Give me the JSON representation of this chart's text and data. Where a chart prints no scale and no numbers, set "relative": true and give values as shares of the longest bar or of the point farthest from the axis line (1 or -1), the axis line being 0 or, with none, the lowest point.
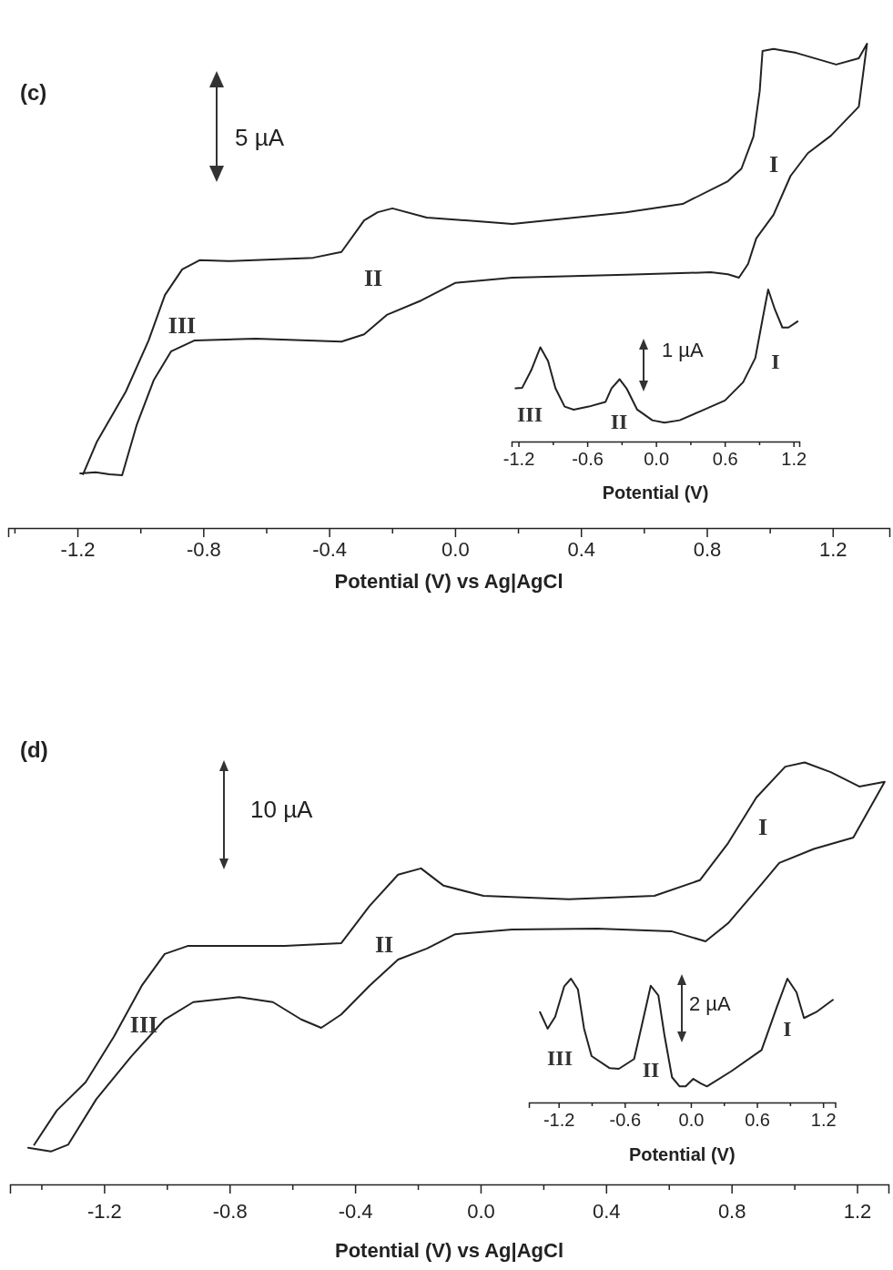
{
  "chart_data": [
    {
      "type": "line",
      "title": "(c)",
      "xlabel": "Potential (V) vs Ag|AgCl",
      "relative": true,
      "tick_labels": "x",
      "xlim": [
        -1.42,
        1.38
      ],
      "xticks": [
        {
          "value": -1.4,
          "label": null
        },
        -1.2,
        {
          "value": -1.0,
          "label": null
        },
        -0.8,
        {
          "value": -0.6,
          "label": null
        },
        -0.4,
        {
          "value": -0.2,
          "label": null
        },
        {
          "value": 0,
          "label": "0.0"
        },
        {
          "value": 0.2,
          "label": null
        },
        0.4,
        {
          "value": 0.6,
          "label": null
        },
        0.8,
        {
          "value": 1.0,
          "label": null
        },
        1.2
      ],
      "series": [
        {
          "color": "#222222",
          "x": [
            -1.191,
            -1.142,
            -1.098,
            -1.058,
            -1.012,
            -0.957,
            -0.902,
            -0.829,
            -0.633,
            -0.361,
            -0.289,
            -0.217,
            -0.107,
            0.0,
            0.182,
            0.543,
            0.812,
            0.867,
            0.902,
            0.931,
            0.957,
            1.012,
            1.066,
            1.121,
            1.194,
            1.283,
            1.309,
            1.283,
            1.211,
            1.084,
            1.012,
            0.977,
            0.968,
            0.948,
            0.91,
            0.867,
            0.723,
            0.543,
            0.182,
            -0.09,
            -0.199,
            -0.246,
            -0.289,
            -0.361,
            -0.451,
            -0.723,
            -0.812,
            -0.867,
            -0.922,
            -0.974,
            -1.046,
            -1.139,
            -1.182
          ],
          "values": [
            0.113,
            0.115,
            0.111,
            0.109,
            0.212,
            0.306,
            0.365,
            0.387,
            0.391,
            0.385,
            0.4,
            0.44,
            0.47,
            0.506,
            0.517,
            0.523,
            0.528,
            0.524,
            0.517,
            0.545,
            0.598,
            0.647,
            0.727,
            0.774,
            0.81,
            0.87,
            1.0,
            0.97,
            0.957,
            0.981,
            0.989,
            0.985,
            0.902,
            0.808,
            0.742,
            0.716,
            0.669,
            0.652,
            0.628,
            0.641,
            0.66,
            0.652,
            0.635,
            0.57,
            0.558,
            0.551,
            0.553,
            0.534,
            0.481,
            0.387,
            0.282,
            0.177,
            0.111
          ]
        }
      ],
      "annotations": [
        "5 µA",
        "I",
        "II",
        "III"
      ]
    },
    {
      "type": "line",
      "xlabel": "Potential (V)",
      "relative": true,
      "tick_labels": "x",
      "xlim": [
        -1.26,
        1.25
      ],
      "xticks": [
        -1.2,
        {
          "value": -0.9,
          "label": null
        },
        -0.6,
        {
          "value": -0.3,
          "label": null
        },
        {
          "value": 0,
          "label": "0.0"
        },
        {
          "value": 0.3,
          "label": null
        },
        0.6,
        {
          "value": 0.9,
          "label": null
        },
        1.2
      ],
      "series": [
        {
          "color": "#222222",
          "x": [
            -1.225,
            -1.167,
            -1.088,
            -1.009,
            -0.942,
            -0.877,
            -0.797,
            -0.718,
            -0.586,
            -0.441,
            -0.388,
            -0.317,
            -0.257,
            -0.164,
            -0.032,
            0.074,
            0.206,
            0.39,
            0.602,
            0.76,
            0.867,
            0.931,
            0.979,
            1.037,
            1.103,
            1.156,
            1.235
          ],
          "values": [
            0.35,
            0.354,
            0.47,
            0.62,
            0.53,
            0.35,
            0.23,
            0.21,
            0.23,
            0.26,
            0.35,
            0.41,
            0.35,
            0.21,
            0.14,
            0.124,
            0.14,
            0.2,
            0.27,
            0.39,
            0.55,
            0.81,
            1.0,
            0.87,
            0.75,
            0.75,
            0.79
          ]
        }
      ],
      "annotations": [
        "1 µA",
        "III",
        "II",
        "I"
      ]
    },
    {
      "type": "line",
      "title": "(d)",
      "xlabel": "Potential (V) vs Ag|AgCl",
      "relative": true,
      "tick_labels": "x",
      "xlim": [
        -1.5,
        1.3
      ],
      "xticks": [
        {
          "value": -1.4,
          "label": null
        },
        -1.2,
        {
          "value": -1.0,
          "label": null
        },
        -0.8,
        {
          "value": -0.6,
          "label": null
        },
        -0.4,
        {
          "value": -0.2,
          "label": null
        },
        {
          "value": 0,
          "label": "0.0"
        },
        {
          "value": 0.2,
          "label": null
        },
        0.4,
        {
          "value": 0.6,
          "label": null
        },
        0.8,
        {
          "value": 1.0,
          "label": null
        },
        1.2
      ],
      "series": [
        {
          "color": "#222222",
          "x": [
            -1.442,
            -1.37,
            -1.315,
            -1.225,
            -1.114,
            -1.007,
            -0.916,
            -0.77,
            -0.662,
            -0.572,
            -0.508,
            -0.444,
            -0.354,
            -0.263,
            -0.171,
            -0.081,
            0.1,
            0.371,
            0.608,
            0.717,
            0.789,
            0.898,
            0.952,
            1.062,
            1.188,
            1.288,
            1.207,
            1.116,
            1.033,
            0.971,
            0.879,
            0.789,
            0.699,
            0.554,
            0.281,
            0.009,
            -0.118,
            -0.19,
            -0.263,
            -0.354,
            -0.444,
            -0.625,
            -0.934,
            -1.007,
            -1.08,
            -1.169,
            -1.259,
            -1.351,
            -1.423
          ],
          "values": [
            0.087,
            0.078,
            0.094,
            0.202,
            0.303,
            0.391,
            0.432,
            0.444,
            0.432,
            0.391,
            0.371,
            0.403,
            0.471,
            0.533,
            0.559,
            0.593,
            0.604,
            0.606,
            0.6,
            0.576,
            0.619,
            0.714,
            0.762,
            0.795,
            0.822,
            0.954,
            0.943,
            0.977,
            1.0,
            0.99,
            0.917,
            0.809,
            0.721,
            0.684,
            0.676,
            0.684,
            0.708,
            0.749,
            0.734,
            0.66,
            0.572,
            0.565,
            0.565,
            0.546,
            0.471,
            0.35,
            0.242,
            0.175,
            0.094
          ]
        }
      ],
      "annotations": [
        "10 µA",
        "I",
        "II",
        "III"
      ]
    },
    {
      "type": "line",
      "xlabel": "Potential (V)",
      "relative": true,
      "tick_labels": "x",
      "xlim": [
        -1.47,
        1.31
      ],
      "xticks": [
        -1.2,
        {
          "value": -0.9,
          "label": null
        },
        -0.6,
        {
          "value": -0.3,
          "label": null
        },
        {
          "value": 0,
          "label": "0.0"
        },
        {
          "value": 0.3,
          "label": null
        },
        0.6,
        {
          "value": 0.9,
          "label": null
        },
        1.2
      ],
      "series": [
        {
          "color": "#222222",
          "x": [
            -1.369,
            -1.3,
            -1.231,
            -1.149,
            -1.088,
            -1.025,
            -0.969,
            -0.901,
            -0.736,
            -0.653,
            -0.515,
            -0.446,
            -0.364,
            -0.295,
            -0.24,
            -0.171,
            -0.102,
            -0.047,
            0.022,
            0.091,
            0.146,
            0.366,
            0.642,
            0.779,
            0.876,
            0.959,
            1.027,
            1.138,
            1.289
          ],
          "values": [
            0.73,
            0.596,
            0.693,
            0.939,
            1.0,
            0.914,
            0.596,
            0.375,
            0.277,
            0.272,
            0.351,
            0.62,
            0.943,
            0.865,
            0.546,
            0.204,
            0.13,
            0.13,
            0.191,
            0.154,
            0.13,
            0.252,
            0.424,
            0.767,
            1.0,
            0.89,
            0.682,
            0.73,
            0.829
          ]
        }
      ],
      "annotations": [
        "2 µA",
        "III",
        "II",
        "I"
      ]
    }
  ]
}
